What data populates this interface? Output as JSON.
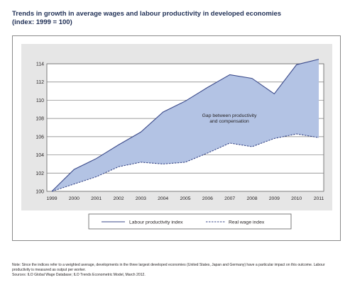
{
  "figure": {
    "title_line1": "Trends in growth in average wages and labour productivity in developed economies",
    "title_line2": "(index: 1999 = 100)",
    "note": "Note: Since the indices refer to a weighted average, developments in the three largest developed economies (United States, Japan and Germany) have a particular impact on this outcome. Labour productivity is measured as output per worker.",
    "sources": "Sources: ILO Global Wage Database; ILO Trends Econometric Model, March 2012."
  },
  "colors": {
    "gap_fill": "#b3c3e4",
    "line": "#3b4a8a",
    "plot_background": "#e6e6e6",
    "grid": "#7a7a7a"
  },
  "chart_data": {
    "type": "area",
    "x": [
      1999,
      2000,
      2001,
      2002,
      2003,
      2004,
      2005,
      2006,
      2007,
      2008,
      2009,
      2010,
      2011
    ],
    "series": [
      {
        "name": "Labour productivity index",
        "style": "solid",
        "values": [
          100,
          102.4,
          103.6,
          105.1,
          106.5,
          108.7,
          109.9,
          111.4,
          112.8,
          112.4,
          110.7,
          113.9,
          114.5
        ]
      },
      {
        "name": "Real wage index",
        "style": "dashed",
        "values": [
          100,
          100.8,
          101.6,
          102.7,
          103.2,
          103.0,
          103.2,
          104.2,
          105.3,
          104.9,
          105.8,
          106.3,
          105.9
        ]
      }
    ],
    "annotation": "Gap between productivity and compensation",
    "ylim": [
      100,
      114
    ],
    "yticks": [
      100,
      102,
      104,
      106,
      108,
      110,
      112,
      114
    ],
    "grid": true,
    "legend_position": "bottom"
  }
}
